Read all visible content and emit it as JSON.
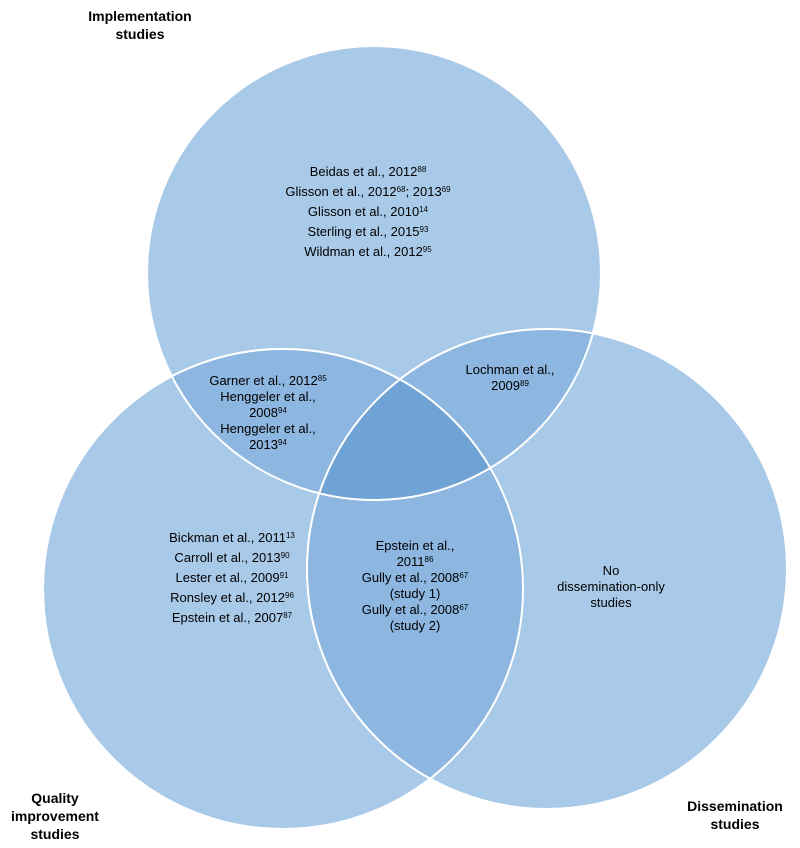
{
  "colors": {
    "circle_fill": "#a9c9e8",
    "overlap_two": "#8db6e0",
    "overlap_three": "#6fa3d6",
    "circle_stroke": "#ffffff"
  },
  "sets": {
    "implementation": {
      "label": [
        "Implementation",
        "studies"
      ]
    },
    "quality_improvement": {
      "label": [
        "Quality",
        "improvement",
        "studies"
      ]
    },
    "dissemination": {
      "label": [
        "Dissemination",
        "studies"
      ]
    }
  },
  "regions": {
    "implementation_only": [
      {
        "text": "Beidas et al., 2012",
        "ref": "88"
      },
      {
        "text": "Glisson et al., 2012",
        "ref": "68",
        "text2": "; 2013",
        "ref2": "69"
      },
      {
        "text": "Glisson et al., 2010",
        "ref": "14"
      },
      {
        "text": "Sterling et al., 2015",
        "ref": "93"
      },
      {
        "text": "Wildman et al., 2012",
        "ref": "95"
      }
    ],
    "implementation_quality": [
      {
        "text": "Garner et al., 2012",
        "ref": "85"
      },
      {
        "text": "Henggeler et al.,",
        "ref": ""
      },
      {
        "text": "2008",
        "ref": "94"
      },
      {
        "text": "Henggeler et al.,",
        "ref": ""
      },
      {
        "text": "2013",
        "ref": "94"
      }
    ],
    "implementation_dissemination": [
      {
        "text": "Lochman et al.,",
        "ref": ""
      },
      {
        "text": "2009",
        "ref": "89"
      }
    ],
    "quality_only": [
      {
        "text": "Bickman et al., 2011",
        "ref": "13"
      },
      {
        "text": "Carroll et al., 2013",
        "ref": "90"
      },
      {
        "text": "Lester et al., 2009",
        "ref": "91"
      },
      {
        "text": "Ronsley et al., 2012",
        "ref": "96"
      },
      {
        "text": "Epstein et al., 2007",
        "ref": "87"
      }
    ],
    "quality_dissemination": [
      {
        "text": "Epstein et al.,",
        "ref": ""
      },
      {
        "text": "2011",
        "ref": "86"
      },
      {
        "text": "Gully et al., 2008",
        "ref": "67"
      },
      {
        "text": "(study 1)",
        "ref": ""
      },
      {
        "text": "Gully et al., 2008",
        "ref": "67"
      },
      {
        "text": "(study 2)",
        "ref": ""
      }
    ],
    "dissemination_only": [
      {
        "text": "No",
        "ref": ""
      },
      {
        "text": "dissemination-only",
        "ref": ""
      },
      {
        "text": "studies",
        "ref": ""
      }
    ]
  }
}
